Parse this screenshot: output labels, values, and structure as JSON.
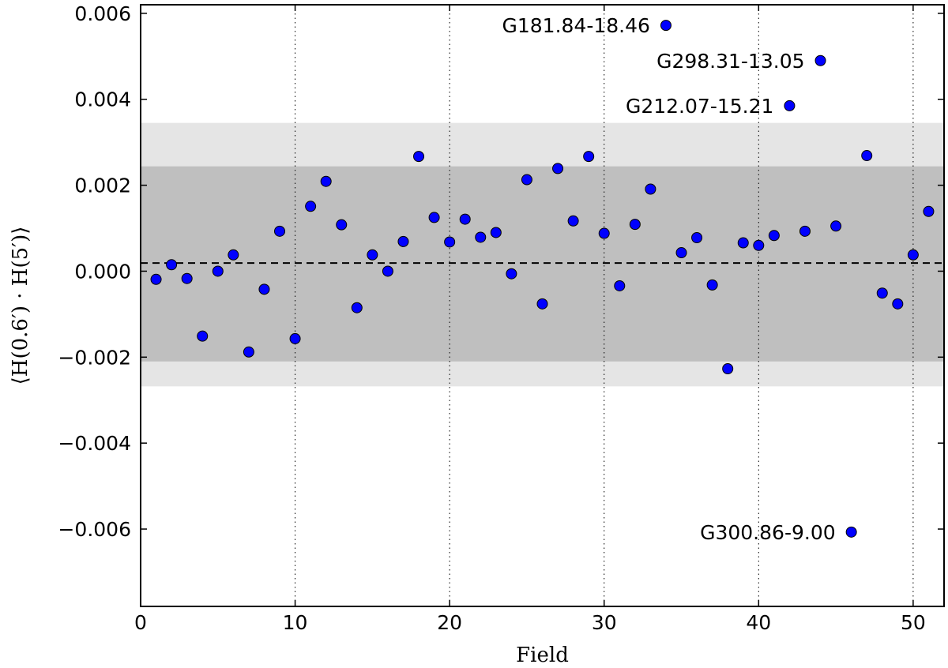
{
  "chart_data": {
    "type": "scatter",
    "xlabel": "Field",
    "ylabel": "⟨H(0.6′) · H(5′)⟩",
    "xlim": [
      0,
      52
    ],
    "ylim": [
      -0.0078,
      0.0062
    ],
    "xticks": [
      0,
      10,
      20,
      30,
      40,
      50
    ],
    "xtick_labels": [
      "0",
      "10",
      "20",
      "30",
      "40",
      "50"
    ],
    "yticks": [
      -0.006,
      -0.004,
      -0.002,
      0.0,
      0.002,
      0.004,
      0.006
    ],
    "ytick_labels": [
      "−0.006",
      "−0.004",
      "−0.002",
      "0.000",
      "0.002",
      "0.004",
      "0.006"
    ],
    "grid": "vertical dotted lines at x ticks",
    "colors": {
      "point_fill": "#0000ff",
      "point_edge": "#000000",
      "band_inner": "#bfbfbf",
      "band_outer": "#e5e5e5",
      "mean_line": "#000000"
    },
    "mean_line": 0.00019,
    "band_inner": [
      -0.0021,
      0.00244
    ],
    "band_outer": [
      -0.00268,
      0.00345
    ],
    "series": [
      {
        "x": [
          1,
          2,
          3,
          4,
          5,
          6,
          7,
          8,
          9,
          10,
          11,
          12,
          13,
          14,
          15,
          16,
          17,
          18,
          19,
          20,
          21,
          22,
          23,
          24,
          25,
          26,
          27,
          28,
          29,
          30,
          31,
          32,
          33,
          34,
          35,
          36,
          37,
          38,
          39,
          40,
          41,
          42,
          43,
          44,
          45,
          46,
          47,
          48,
          49,
          50,
          51
        ],
        "y": [
          -0.00019,
          0.00015,
          -0.00017,
          -0.00151,
          0.0,
          0.00038,
          -0.00188,
          -0.00042,
          0.00093,
          -0.00157,
          0.00151,
          0.00209,
          0.00108,
          -0.00085,
          0.00038,
          0.0,
          0.00069,
          0.00267,
          0.00125,
          0.00068,
          0.00121,
          0.00079,
          0.0009,
          -6e-05,
          0.00213,
          -0.00076,
          0.00239,
          0.00117,
          0.00267,
          0.00088,
          -0.00034,
          0.00109,
          0.00191,
          0.00572,
          0.00043,
          0.00078,
          -0.00032,
          -0.00227,
          0.00066,
          0.0006,
          0.00083,
          0.00385,
          0.00093,
          0.0049,
          0.00105,
          -0.00607,
          0.00269,
          -0.00051,
          -0.00076,
          0.00038,
          0.00139
        ]
      }
    ],
    "annotations": [
      {
        "text": "G181.84-18.46",
        "x": 34,
        "y": 0.00572
      },
      {
        "text": "G298.31-13.05",
        "x": 44,
        "y": 0.0049
      },
      {
        "text": "G212.07-15.21",
        "x": 42,
        "y": 0.00385
      },
      {
        "text": "G300.86-9.00",
        "x": 46,
        "y": -0.00607
      }
    ]
  }
}
